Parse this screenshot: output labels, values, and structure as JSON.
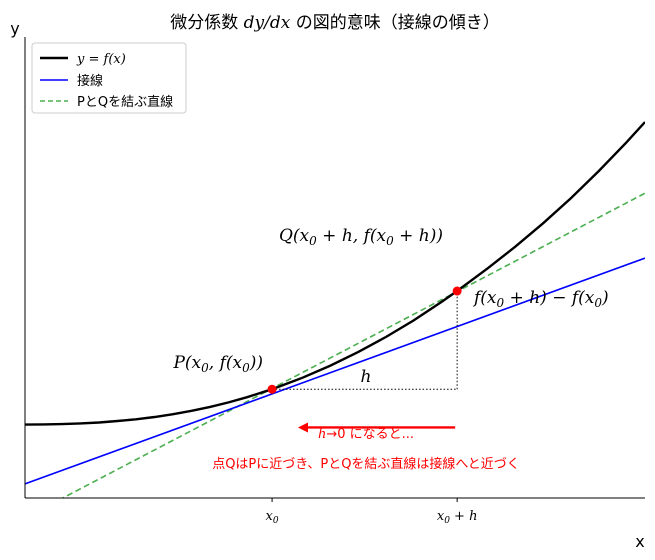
{
  "chart_data": {
    "type": "line",
    "title_pre": "微分係数 ",
    "title_math": "dy/dx",
    "title_post": " の図的意味（接線の傾き）",
    "xlabel": "x",
    "ylabel": "y",
    "xlim": [
      -2,
      4.7
    ],
    "ylim": [
      -0.3,
      4.6
    ],
    "grid": false,
    "legend_position": "upper-left",
    "legend": [
      {
        "label": "y = f(x)",
        "color": "#000000",
        "style": "solid"
      },
      {
        "label": "接線",
        "color": "#0000ff",
        "style": "solid"
      },
      {
        "label": "PとQを結ぶ直線",
        "color": "#4caf50",
        "style": "dashed"
      }
    ],
    "x_ticks": [
      {
        "value": 0.67,
        "label": "x0"
      },
      {
        "value": 2.67,
        "label": "x0 + h"
      }
    ],
    "series": [
      {
        "name": "y = f(x)",
        "color": "#000000",
        "width": 2.4,
        "x": [
          -2,
          -1.8,
          -1.6,
          -1.4,
          -1.2,
          -1.0,
          -0.8,
          -0.6,
          -0.4,
          -0.2,
          0,
          0.2,
          0.4,
          0.67,
          1.0,
          1.3,
          1.6,
          1.9,
          2.2,
          2.5,
          2.67,
          3.0,
          3.3,
          3.6,
          3.9,
          4.2,
          4.5,
          4.7
        ],
        "y": [
          0.48,
          0.482,
          0.486,
          0.493,
          0.503,
          0.518,
          0.537,
          0.561,
          0.591,
          0.627,
          0.668,
          0.716,
          0.771,
          0.856,
          0.979,
          1.107,
          1.251,
          1.411,
          1.588,
          1.783,
          1.9,
          2.141,
          2.372,
          2.621,
          2.888,
          3.175,
          3.481,
          3.697
        ]
      },
      {
        "name": "接線",
        "color": "#0000ff",
        "width": 1.6,
        "x": [
          -2,
          4.7
        ],
        "y": [
          -0.15,
          2.25
        ]
      },
      {
        "name": "PとQを結ぶ直線",
        "color": "#4caf50",
        "width": 1.6,
        "dashed": true,
        "x": [
          -2,
          4.7
        ],
        "y": [
          -0.51,
          2.94
        ]
      }
    ],
    "points": [
      {
        "name": "P",
        "x": 0.67,
        "y": 0.856,
        "label": "P(x0, f(x0))"
      },
      {
        "name": "Q",
        "x": 2.67,
        "y": 1.9,
        "label": "Q(x0 + h, f(x0 + h))"
      }
    ],
    "annotations": {
      "h_label": "h",
      "dy_label": "f(x0 + h) − f(x0)",
      "arrow": {
        "from": [
          2.67,
          0.45
        ],
        "to": [
          0.95,
          0.45
        ],
        "color": "#ff0000"
      },
      "note1": "h→0 になると...",
      "note2": "点QはPに近づき、PとQを結ぶ直線は接線へと近づく",
      "note_color": "#ff0000"
    },
    "colors": {
      "curve": "#000000",
      "tangent": "#0000ff",
      "secant": "#4caf50",
      "points": "#ff0000"
    }
  }
}
